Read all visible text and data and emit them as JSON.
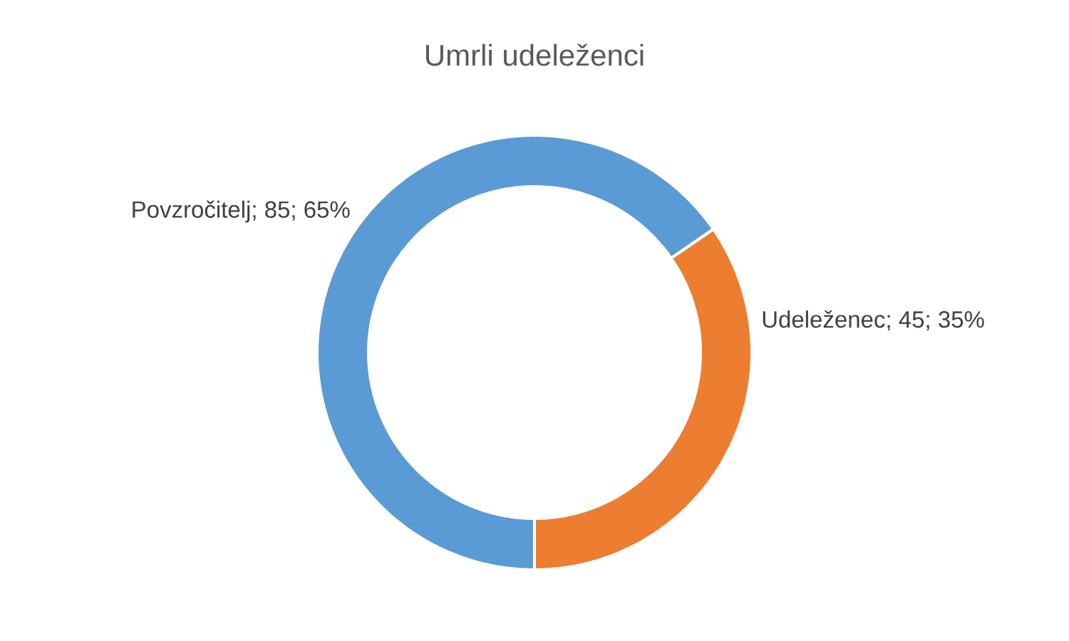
{
  "chart_data": {
    "type": "donut",
    "title": "Umrli udeleženci",
    "categories": [
      "Povzročitelj",
      "Udeleženec"
    ],
    "values": [
      85,
      45
    ],
    "colors": [
      "#5b9bd5",
      "#ed7d31"
    ],
    "value_labels": [
      "; 85; 65%",
      "; 45; 35%"
    ]
  }
}
